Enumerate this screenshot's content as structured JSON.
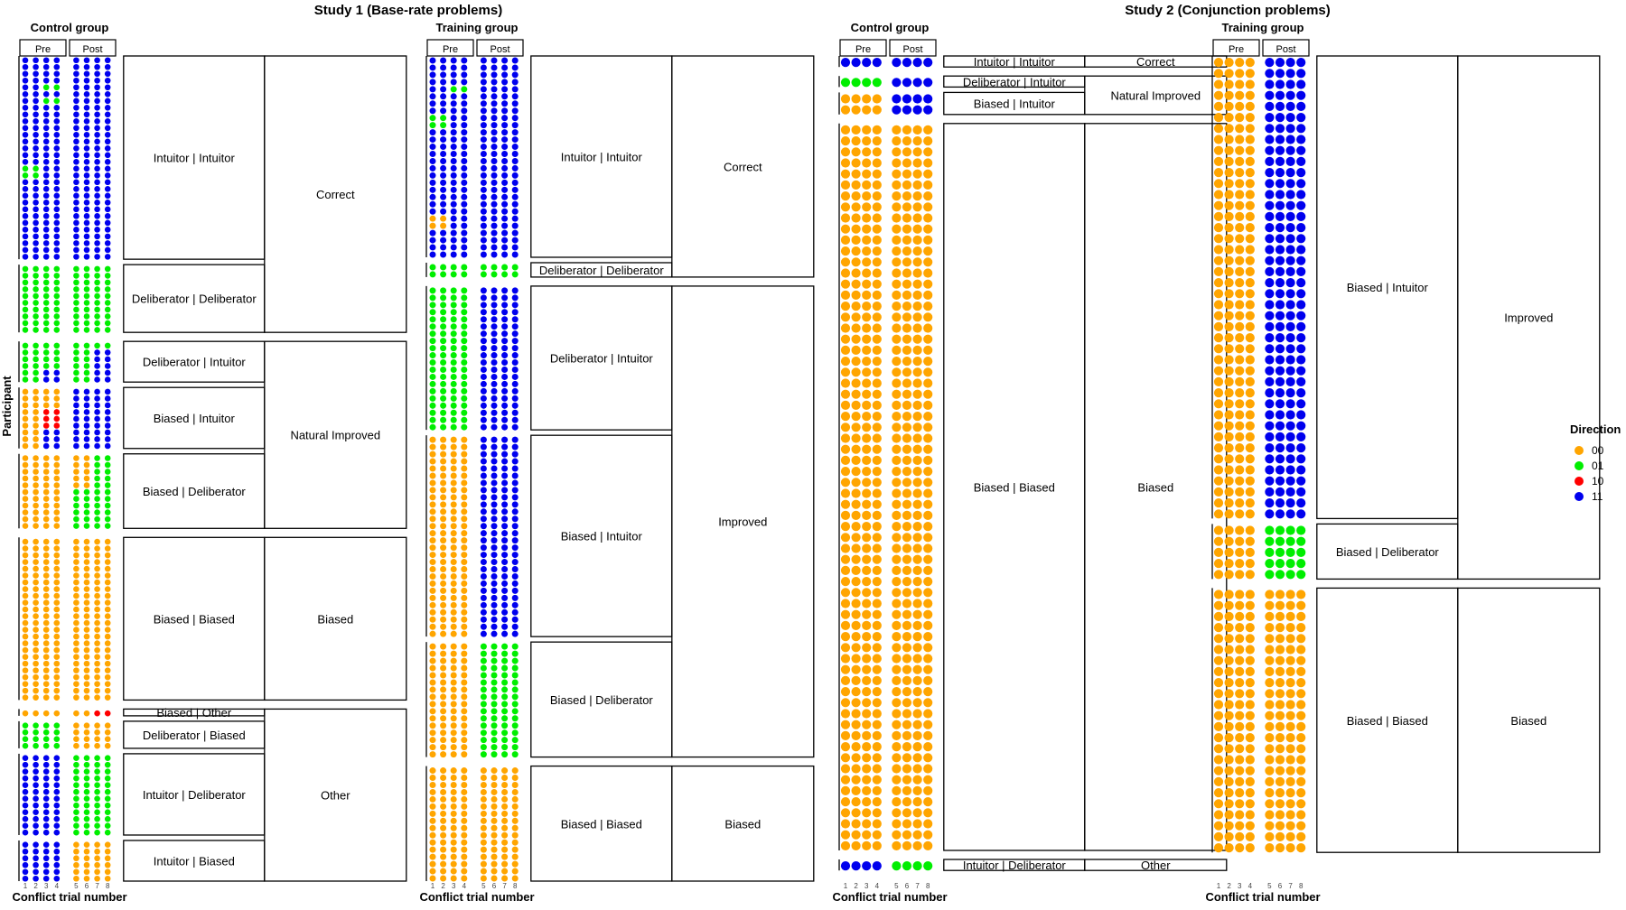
{
  "chart_data": {
    "type": "dot-matrix",
    "studies": [
      {
        "title": "Study 1 (Base-rate problems)",
        "groups": [
          {
            "name": "Control group",
            "segments": [
              {
                "outer": "Correct",
                "rows": [
                  {
                    "label": "Intuitor | Intuitor",
                    "participants": [
                      "11111111",
                      "11111111",
                      "11111111",
                      "11111111",
                      "11011111",
                      "11111111",
                      "11011111",
                      "11111111",
                      "11111111",
                      "11111111",
                      "11111111",
                      "11111111",
                      "11111111",
                      "11111111",
                      "11111111",
                      "11111111",
                      "01111111",
                      "01111111",
                      "11111111",
                      "11111111",
                      "11111111",
                      "11111111",
                      "11111111",
                      "11111111",
                      "11111111",
                      "11111111",
                      "11111111",
                      "11111111",
                      "11111111",
                      "11111111"
                    ]
                  },
                  {
                    "label": "Deliberator | Deliberator",
                    "participants": [
                      "01010101",
                      "01010101",
                      "01010101",
                      "01010101",
                      "01010101",
                      "01010101",
                      "01010101",
                      "01010101",
                      "01010101",
                      "01010101"
                    ]
                  }
                ]
              },
              {
                "outer": "Natural Improved",
                "rows": [
                  {
                    "label": "Deliberator | Intuitor",
                    "participants": [
                      "01010101",
                      "01010111",
                      "01010111",
                      "01010111",
                      "01110111",
                      "01110111"
                    ]
                  },
                  {
                    "label": "Biased | Intuitor",
                    "participants": [
                      "00001111",
                      "00001111",
                      "00001111",
                      "00101111",
                      "00101111",
                      "00101111",
                      "00111111",
                      "00111111",
                      "00111111"
                    ]
                  },
                  {
                    "label": "Biased | Deliberator",
                    "participants": [
                      "00000001",
                      "00000001",
                      "00000001",
                      "00000001",
                      "00000001",
                      "00000101",
                      "00000101",
                      "00000101",
                      "00000101",
                      "00000101",
                      "00000101"
                    ]
                  }
                ]
              },
              {
                "outer": "Biased",
                "rows": [
                  {
                    "label": "Biased | Biased",
                    "participants": [
                      "00000000",
                      "00000000",
                      "00000000",
                      "00000000",
                      "00000000",
                      "00000000",
                      "00000000",
                      "00000000",
                      "00000000",
                      "00000000",
                      "00000000",
                      "00000000",
                      "00000000",
                      "00000000",
                      "00000000",
                      "00000000",
                      "00000000",
                      "00000000",
                      "00000000",
                      "00000000",
                      "00000000",
                      "00000000",
                      "00000000",
                      "00000000"
                    ]
                  }
                ]
              },
              {
                "outer": "Other",
                "rows": [
                  {
                    "label": "Biased | Other",
                    "participants": [
                      "00000010"
                    ]
                  },
                  {
                    "label": "Deliberator | Biased",
                    "participants": [
                      "01010000",
                      "01010000",
                      "01010000",
                      "01010000"
                    ]
                  },
                  {
                    "label": "Intuitor | Deliberator",
                    "participants": [
                      "11110101",
                      "11110101",
                      "11110101",
                      "11110101",
                      "11110101",
                      "11110101",
                      "11110101",
                      "11110101",
                      "11110101",
                      "11110101",
                      "11110101",
                      "11110101"
                    ]
                  },
                  {
                    "label": "Intuitor | Biased",
                    "participants": [
                      "11110000",
                      "11110000",
                      "11110000",
                      "11110000",
                      "11110000",
                      "11110000"
                    ]
                  }
                ]
              }
            ]
          },
          {
            "name": "Training group",
            "segments": [
              {
                "outer": "Correct",
                "rows": [
                  {
                    "label": "Intuitor | Intuitor",
                    "participants": [
                      "11111111",
                      "11111111",
                      "11111111",
                      "11111111",
                      "11011111",
                      "11111111",
                      "11111111",
                      "11111111",
                      "01111111",
                      "01111111",
                      "11111111",
                      "11111111",
                      "11111111",
                      "11111111",
                      "11111111",
                      "11111111",
                      "11111111",
                      "11111111",
                      "11111111",
                      "11111111",
                      "11111111",
                      "11111111",
                      "00111111",
                      "00111111",
                      "11111111",
                      "11111111",
                      "11111111",
                      "11111111"
                    ]
                  },
                  {
                    "label": "Deliberator | Deliberator",
                    "participants": [
                      "01010101",
                      "01010101"
                    ]
                  }
                ]
              },
              {
                "outer": "Improved",
                "rows": [
                  {
                    "label": "Deliberator | Intuitor",
                    "participants": [
                      "01011111",
                      "01011111",
                      "01011111",
                      "01011111",
                      "01011111",
                      "01011111",
                      "01011111",
                      "01011111",
                      "01011111",
                      "01011111",
                      "01011111",
                      "01011111",
                      "01011111",
                      "01011111",
                      "01011111",
                      "01011111",
                      "01011111",
                      "01011111",
                      "01011111",
                      "01011111"
                    ]
                  },
                  {
                    "label": "Biased | Intuitor",
                    "participants": [
                      "00001111",
                      "00001111",
                      "00001111",
                      "00001111",
                      "00001111",
                      "00001111",
                      "00001111",
                      "00001111",
                      "00001111",
                      "00001111",
                      "00001111",
                      "00001111",
                      "00001111",
                      "00001111",
                      "00001111",
                      "00001111",
                      "00001111",
                      "00001111",
                      "00001111",
                      "00001111",
                      "00001111",
                      "00001111",
                      "00001111",
                      "00001111",
                      "00001111",
                      "00001111",
                      "00001111",
                      "00001111"
                    ]
                  },
                  {
                    "label": "Biased | Deliberator",
                    "participants": [
                      "00000101",
                      "00000101",
                      "00000101",
                      "00000101",
                      "00000101",
                      "00000101",
                      "00000101",
                      "00000101",
                      "00000101",
                      "00000101",
                      "00000101",
                      "00000101",
                      "00000101",
                      "00000101",
                      "00000101",
                      "00000101"
                    ]
                  }
                ]
              },
              {
                "outer": "Biased",
                "rows": [
                  {
                    "label": "Biased | Biased",
                    "participants": [
                      "00000000",
                      "00000000",
                      "00000000",
                      "00000000",
                      "00000000",
                      "00000000",
                      "00000000",
                      "00000000",
                      "00000000",
                      "00000000",
                      "00000000",
                      "00000000",
                      "00000000",
                      "00000000",
                      "00000000",
                      "00000000"
                    ]
                  }
                ]
              }
            ]
          }
        ]
      },
      {
        "title": "Study 2 (Conjunction problems)",
        "groups": [
          {
            "name": "Control group",
            "segments": [
              {
                "outer": "Correct",
                "rows": [
                  {
                    "label": "Intuitor | Intuitor",
                    "participants": [
                      "11111111"
                    ]
                  }
                ]
              },
              {
                "outer": "Natural Improved",
                "rows": [
                  {
                    "label": "Deliberator | Intuitor",
                    "participants": [
                      "01011111"
                    ]
                  },
                  {
                    "label": "Biased | Intuitor",
                    "participants": [
                      "00001111",
                      "00001111"
                    ]
                  }
                ]
              },
              {
                "outer": "Biased",
                "rows": [
                  {
                    "label": "Biased | Biased",
                    "participants": [
                      "00000000",
                      "00000000",
                      "00000000",
                      "00000000",
                      "00000000",
                      "00000000",
                      "00000000",
                      "00000000",
                      "00000000",
                      "00000000",
                      "00000000",
                      "00000000",
                      "00000000",
                      "00000000",
                      "00000000",
                      "00000000",
                      "00000000",
                      "00000000",
                      "00000000",
                      "00000000",
                      "00000000",
                      "00000000",
                      "00000000",
                      "00000000",
                      "00000000",
                      "00000000",
                      "00000000",
                      "00000000",
                      "00000000",
                      "00000000",
                      "00000000",
                      "00000000",
                      "00000000",
                      "00000000",
                      "00000000",
                      "00000000",
                      "00000000",
                      "00000000",
                      "00000000",
                      "00000000",
                      "00000000",
                      "00000000",
                      "00000000",
                      "00000000",
                      "00000000",
                      "00000000",
                      "00000000",
                      "00000000",
                      "00000000",
                      "00000000",
                      "00000000",
                      "00000000",
                      "00000000",
                      "00000000",
                      "00000000",
                      "00000000",
                      "00000000",
                      "00000000",
                      "00000000",
                      "00000000",
                      "00000000",
                      "00000000",
                      "00000000",
                      "00000000",
                      "00000000",
                      "00000000"
                    ]
                  }
                ]
              },
              {
                "outer": "Other",
                "rows": [
                  {
                    "label": "Intuitor | Deliberator",
                    "participants": [
                      "11110101"
                    ]
                  }
                ]
              }
            ]
          },
          {
            "name": "Training group",
            "segments": [
              {
                "outer": "Improved",
                "rows": [
                  {
                    "label": "Biased | Intuitor",
                    "participants": [
                      "00001111",
                      "00001111",
                      "00001111",
                      "00001111",
                      "00001111",
                      "00001111",
                      "00001111",
                      "00001111",
                      "00001111",
                      "00001111",
                      "00001111",
                      "00001111",
                      "00001111",
                      "00001111",
                      "00001111",
                      "00001111",
                      "00001111",
                      "00001111",
                      "00001111",
                      "00001111",
                      "00001111",
                      "00001111",
                      "00001111",
                      "00001111",
                      "00001111",
                      "00001111",
                      "00001111",
                      "00001111",
                      "00001111",
                      "00001111",
                      "00001111",
                      "00001111",
                      "00001111",
                      "00001111",
                      "00001111",
                      "00001111",
                      "00001111",
                      "00001111",
                      "00001111",
                      "00001111",
                      "00001111",
                      "00001111"
                    ]
                  },
                  {
                    "label": "Biased | Deliberator",
                    "participants": [
                      "00000101",
                      "00000101",
                      "00000101",
                      "00000101",
                      "00000101"
                    ]
                  }
                ]
              },
              {
                "outer": "Biased",
                "rows": [
                  {
                    "label": "Biased | Biased",
                    "participants": [
                      "00000000",
                      "00000000",
                      "00000000",
                      "00000000",
                      "00000000",
                      "00000000",
                      "00000000",
                      "00000000",
                      "00000000",
                      "00000000",
                      "00000000",
                      "00000000",
                      "00000000",
                      "00000000",
                      "00000000",
                      "00000000",
                      "00000000",
                      "00000000",
                      "00000000",
                      "00000000",
                      "00000000",
                      "00000000",
                      "00000000",
                      "00000000"
                    ]
                  }
                ]
              }
            ]
          }
        ]
      }
    ],
    "y_axis_label": "Participant",
    "x_axis_label": "Conflict trial number",
    "x_ticks": [
      "1",
      "2",
      "3",
      "4",
      "5",
      "6",
      "7",
      "8"
    ],
    "phase_headers": [
      "Pre",
      "Post"
    ],
    "legend": {
      "title": "Direction",
      "placement": "right",
      "items": [
        {
          "code": "00",
          "color": "#ffa500"
        },
        {
          "code": "01",
          "color": "#00ee00"
        },
        {
          "code": "10",
          "color": "#ff0000"
        },
        {
          "code": "11",
          "color": "#0000ee"
        }
      ]
    }
  }
}
